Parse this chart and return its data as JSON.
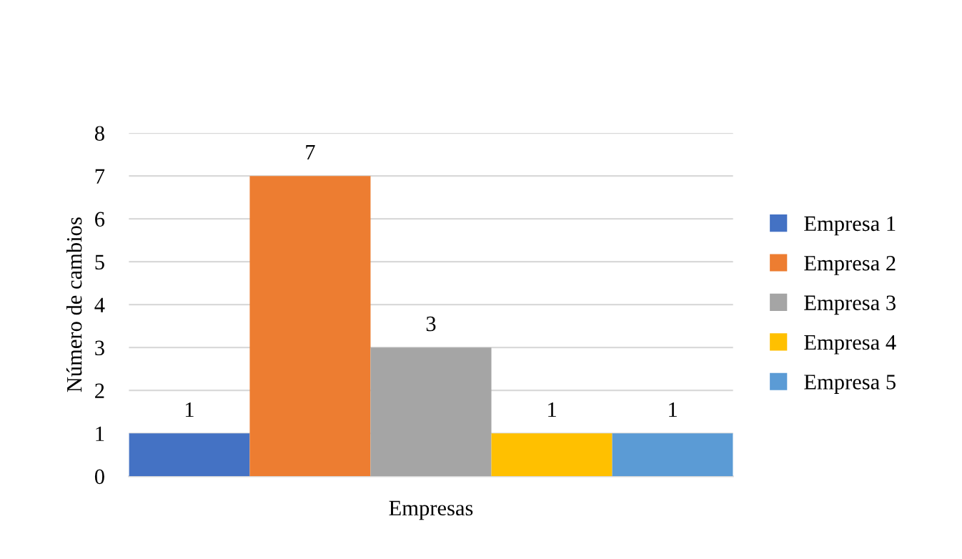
{
  "chart_data": {
    "type": "bar",
    "xlabel": "Empresas",
    "ylabel": "Número de cambios",
    "categories": [
      null
    ],
    "series": [
      {
        "name": "Empresa 1",
        "color": "#4472c4",
        "values": [
          1
        ]
      },
      {
        "name": "Empresa 2",
        "color": "#ed7d31",
        "values": [
          7
        ]
      },
      {
        "name": "Empresa 3",
        "color": "#a5a5a5",
        "values": [
          3
        ]
      },
      {
        "name": "Empresa 4",
        "color": "#ffc000",
        "values": [
          1
        ]
      },
      {
        "name": "Empresa 5",
        "color": "#5b9bd5",
        "values": [
          1
        ]
      }
    ],
    "ylim": [
      0,
      8
    ],
    "yticks": [
      0,
      1,
      2,
      3,
      4,
      5,
      6,
      7,
      8
    ],
    "grid": "y",
    "data_labels": true,
    "legend": "right",
    "tick_labels": "y"
  }
}
